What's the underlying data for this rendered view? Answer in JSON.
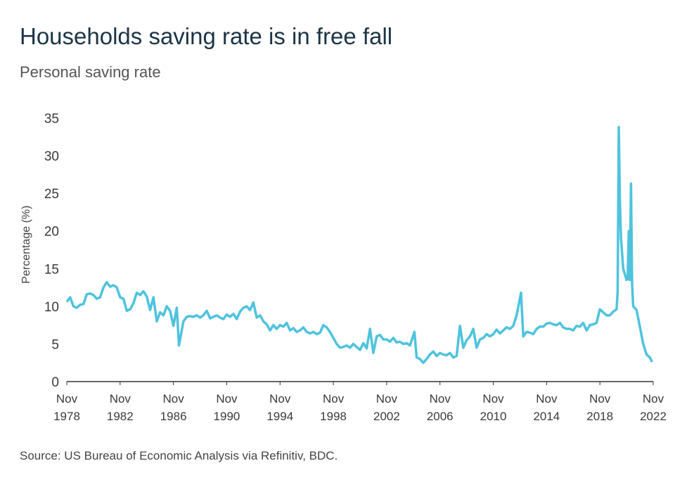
{
  "chart_data": {
    "type": "line",
    "title": "Households saving rate is in free fall",
    "subtitle": "Personal saving rate",
    "y_label": "Percentage (%)",
    "source": "Source: US Bureau of Economic Analysis via Refinitiv, BDC.",
    "x": [
      "1978-11",
      "1979-02",
      "1979-05",
      "1979-08",
      "1979-11",
      "1980-02",
      "1980-05",
      "1980-08",
      "1980-11",
      "1981-02",
      "1981-05",
      "1981-08",
      "1981-11",
      "1982-02",
      "1982-05",
      "1982-08",
      "1982-11",
      "1983-02",
      "1983-05",
      "1983-08",
      "1983-11",
      "1984-02",
      "1984-05",
      "1984-08",
      "1984-11",
      "1985-02",
      "1985-05",
      "1985-08",
      "1985-11",
      "1986-02",
      "1986-05",
      "1986-08",
      "1986-11",
      "1987-02",
      "1987-04",
      "1987-08",
      "1987-11",
      "1988-02",
      "1988-05",
      "1988-08",
      "1988-11",
      "1989-02",
      "1989-05",
      "1989-08",
      "1989-11",
      "1990-02",
      "1990-05",
      "1990-08",
      "1990-11",
      "1991-02",
      "1991-05",
      "1991-08",
      "1991-11",
      "1992-02",
      "1992-05",
      "1992-08",
      "1992-11",
      "1993-02",
      "1993-05",
      "1993-08",
      "1993-11",
      "1994-02",
      "1994-05",
      "1994-08",
      "1994-11",
      "1995-02",
      "1995-05",
      "1995-08",
      "1995-11",
      "1996-02",
      "1996-05",
      "1996-08",
      "1996-11",
      "1997-02",
      "1997-05",
      "1997-08",
      "1997-11",
      "1998-02",
      "1998-05",
      "1998-08",
      "1998-11",
      "1999-02",
      "1999-05",
      "1999-08",
      "1999-11",
      "2000-02",
      "2000-05",
      "2000-08",
      "2000-11",
      "2001-02",
      "2001-05",
      "2001-08",
      "2001-11",
      "2002-02",
      "2002-05",
      "2002-08",
      "2002-11",
      "2003-02",
      "2003-05",
      "2003-08",
      "2003-11",
      "2004-02",
      "2004-05",
      "2004-08",
      "2004-12",
      "2005-02",
      "2005-05",
      "2005-08",
      "2005-11",
      "2006-02",
      "2006-05",
      "2006-08",
      "2006-11",
      "2007-02",
      "2007-05",
      "2007-08",
      "2007-11",
      "2008-02",
      "2008-05",
      "2008-08",
      "2008-11",
      "2009-02",
      "2009-05",
      "2009-08",
      "2009-11",
      "2010-02",
      "2010-05",
      "2010-08",
      "2010-11",
      "2011-02",
      "2011-05",
      "2011-08",
      "2011-11",
      "2012-02",
      "2012-05",
      "2012-08",
      "2012-12",
      "2013-02",
      "2013-05",
      "2013-08",
      "2013-11",
      "2014-02",
      "2014-05",
      "2014-08",
      "2014-11",
      "2015-02",
      "2015-05",
      "2015-08",
      "2015-11",
      "2016-02",
      "2016-05",
      "2016-08",
      "2016-11",
      "2017-02",
      "2017-05",
      "2017-08",
      "2017-11",
      "2018-02",
      "2018-05",
      "2018-08",
      "2018-11",
      "2019-02",
      "2019-05",
      "2019-08",
      "2019-11",
      "2020-02",
      "2020-03",
      "2020-04",
      "2020-05",
      "2020-06",
      "2020-08",
      "2020-11",
      "2020-12",
      "2021-01",
      "2021-02",
      "2021-03",
      "2021-04",
      "2021-05",
      "2021-08",
      "2021-11",
      "2022-02",
      "2022-05",
      "2022-08",
      "2022-10"
    ],
    "series": [
      {
        "color": "#4fc3dd",
        "values": [
          10.6,
          11.2,
          10.0,
          9.8,
          10.2,
          10.3,
          11.6,
          11.7,
          11.5,
          11.0,
          11.2,
          12.5,
          13.2,
          12.6,
          12.8,
          12.5,
          11.2,
          11.0,
          9.4,
          9.6,
          10.4,
          11.8,
          11.5,
          12.0,
          11.3,
          9.5,
          11.2,
          8.0,
          9.2,
          8.8,
          10.0,
          9.4,
          7.4,
          9.8,
          4.8,
          8.0,
          8.6,
          8.7,
          8.6,
          8.8,
          8.5,
          8.8,
          9.4,
          8.4,
          8.6,
          8.8,
          8.5,
          8.3,
          8.9,
          8.6,
          9.0,
          8.3,
          9.3,
          9.8,
          10.0,
          9.5,
          10.5,
          8.5,
          8.8,
          8.0,
          7.6,
          6.8,
          7.5,
          7.0,
          7.5,
          7.3,
          7.8,
          6.8,
          7.1,
          6.6,
          6.8,
          7.2,
          6.6,
          6.4,
          6.6,
          6.3,
          6.5,
          7.5,
          7.2,
          6.6,
          5.8,
          5.0,
          4.5,
          4.6,
          4.8,
          4.5,
          5.0,
          4.6,
          4.2,
          5.1,
          4.4,
          7.0,
          3.8,
          6.0,
          6.2,
          5.6,
          5.6,
          5.3,
          5.8,
          5.2,
          5.3,
          5.0,
          5.1,
          4.8,
          6.6,
          3.2,
          3.0,
          2.5,
          3.0,
          3.6,
          4.0,
          3.4,
          3.8,
          3.6,
          3.5,
          3.8,
          3.2,
          3.4,
          7.4,
          4.5,
          5.5,
          6.0,
          7.0,
          4.5,
          5.6,
          5.8,
          6.3,
          6.0,
          6.3,
          6.9,
          6.4,
          6.8,
          7.2,
          7.0,
          7.4,
          8.8,
          11.8,
          6.0,
          6.6,
          6.5,
          6.3,
          7.0,
          7.3,
          7.3,
          7.7,
          7.8,
          7.6,
          7.5,
          7.8,
          7.2,
          7.0,
          7.0,
          6.8,
          7.4,
          7.3,
          7.8,
          6.8,
          7.5,
          7.6,
          7.8,
          9.6,
          9.2,
          8.8,
          8.8,
          9.3,
          9.6,
          12.0,
          33.8,
          24.0,
          19.0,
          15.0,
          13.5,
          13.6,
          20.0,
          13.5,
          26.3,
          12.8,
          10.0,
          9.5,
          7.3,
          5.0,
          3.6,
          3.2,
          2.6
        ]
      }
    ],
    "xlim": [
      "1978-11",
      "2022-11"
    ],
    "xticks": [
      {
        "value": "1978-11",
        "label": "Nov 1978"
      },
      {
        "value": "1982-11",
        "label": "Nov 1982"
      },
      {
        "value": "1986-11",
        "label": "Nov 1986"
      },
      {
        "value": "1990-11",
        "label": "Nov 1990"
      },
      {
        "value": "1994-11",
        "label": "Nov 1994"
      },
      {
        "value": "1998-11",
        "label": "Nov 1998"
      },
      {
        "value": "2002-11",
        "label": "Nov 2002"
      },
      {
        "value": "2006-11",
        "label": "Nov 2006"
      },
      {
        "value": "2010-11",
        "label": "Nov 2010"
      },
      {
        "value": "2014-11",
        "label": "Nov 2014"
      },
      {
        "value": "2018-11",
        "label": "Nov 2018"
      },
      {
        "value": "2022-11",
        "label": "Nov 2022"
      }
    ],
    "ylim": [
      0,
      35
    ],
    "yticks": [
      0,
      5,
      10,
      15,
      20,
      25,
      30,
      35
    ],
    "grid": false
  }
}
